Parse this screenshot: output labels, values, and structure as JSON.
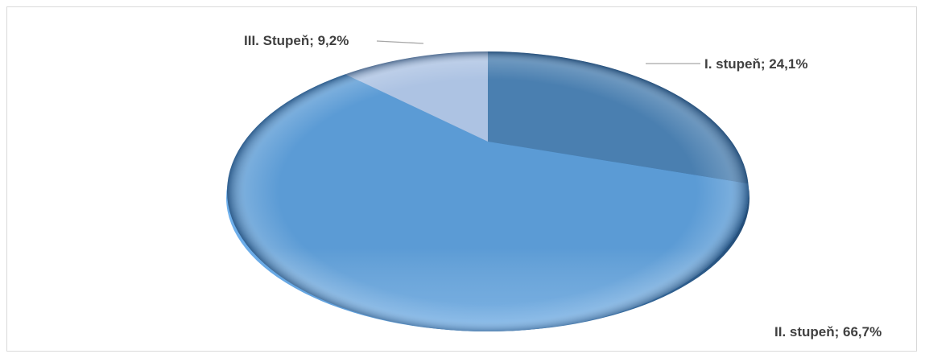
{
  "chart_data": {
    "type": "pie",
    "title": "",
    "categories": [
      "I. stupeň",
      "II. stupeň",
      "III. Stupeň"
    ],
    "values": [
      24.1,
      66.7,
      9.2
    ],
    "unit": "%",
    "data_labels": [
      "I. stupeň; 24,1%",
      "II. stupeň; 66,7%",
      "III. Stupeň; 9,2%"
    ],
    "colors": [
      "#4a7fb0",
      "#5b9bd5",
      "#adc3e3"
    ],
    "legend": "none",
    "style": "3d-pie"
  }
}
